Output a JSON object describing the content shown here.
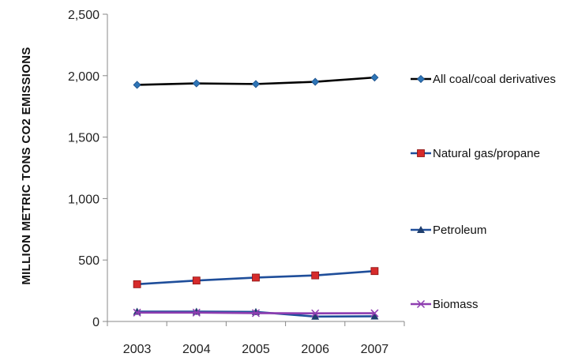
{
  "chart_data": {
    "type": "line",
    "ylabel": "MILLION METRIC TONS CO2 EMISSIONS",
    "xlabel": "",
    "categories": [
      "2003",
      "2004",
      "2005",
      "2006",
      "2007"
    ],
    "ylim": [
      0,
      2500
    ],
    "yticks": [
      0,
      500,
      1000,
      1500,
      2000,
      2500
    ],
    "ytick_labels": [
      "0",
      "500",
      "1,000",
      "1,500",
      "2,000",
      "2,500"
    ],
    "grid": false,
    "legend_position": "right",
    "series": [
      {
        "name": "All coal/coal derivatives",
        "values": [
          1925,
          1937,
          1932,
          1950,
          1985
        ],
        "color": "#000000",
        "marker_color": "#2e75b6",
        "marker": "diamond"
      },
      {
        "name": "Natural gas/propane",
        "values": [
          303,
          333,
          357,
          375,
          410
        ],
        "color": "#1f4e9a",
        "marker_color": "#d62b2b",
        "marker": "square"
      },
      {
        "name": "Petroleum",
        "values": [
          80,
          80,
          78,
          40,
          42
        ],
        "color": "#1f4e9a",
        "marker_color": "#1f3f6e",
        "marker": "triangle"
      },
      {
        "name": "Biomass",
        "values": [
          72,
          72,
          68,
          66,
          67
        ],
        "color": "#8e3db0",
        "marker_color": "#8e3db0",
        "marker": "x"
      }
    ]
  }
}
